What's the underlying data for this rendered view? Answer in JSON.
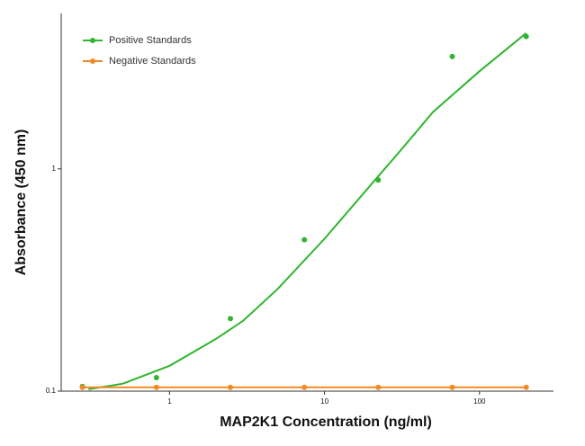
{
  "chart_data": {
    "type": "scatter",
    "xlabel": "MAP2K1 Concentration (ng/ml)",
    "ylabel": "Absorbance (450 nm)",
    "xscale": "log",
    "yscale": "log",
    "xlim": [
      0.2,
      300
    ],
    "ylim": [
      0.1,
      5
    ],
    "xticks": [
      1,
      10,
      100
    ],
    "yticks": [
      0.1,
      1
    ],
    "legend": "upper left",
    "series": [
      {
        "name": "Positive Standards",
        "color": "#2fb52f",
        "x": [
          0.274,
          0.823,
          2.47,
          7.41,
          22.2,
          66.7,
          200
        ],
        "values": [
          0.105,
          0.115,
          0.212,
          0.48,
          0.89,
          3.2,
          3.94
        ],
        "fit": {
          "x": [
            0.3,
            0.5,
            1,
            2,
            3,
            5,
            10,
            20,
            30,
            50,
            100,
            200
          ],
          "values": [
            0.102,
            0.108,
            0.13,
            0.172,
            0.208,
            0.289,
            0.485,
            0.85,
            1.18,
            1.8,
            2.75,
            4.08
          ]
        }
      },
      {
        "name": "Negative Standards",
        "color": "#f08a24",
        "x": [
          0.274,
          0.823,
          2.47,
          7.41,
          22.2,
          66.7,
          200
        ],
        "values": [
          0.104,
          0.104,
          0.104,
          0.104,
          0.104,
          0.104,
          0.104
        ]
      }
    ]
  }
}
